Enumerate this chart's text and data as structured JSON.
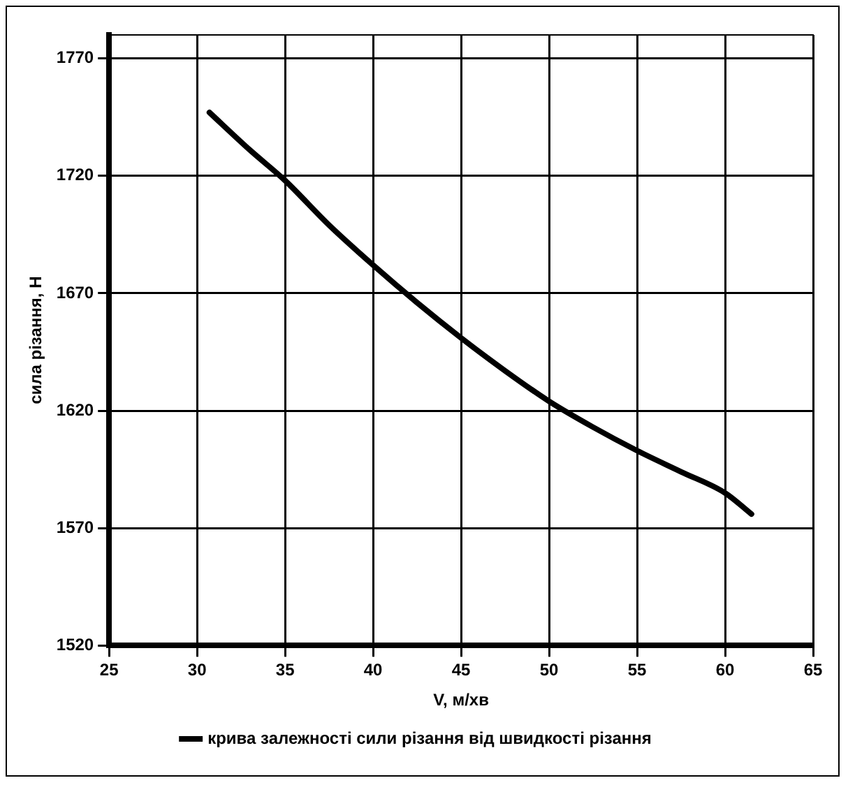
{
  "chart_data": {
    "type": "line",
    "xlabel": "V, м/хв",
    "ylabel": "сила різання, Н",
    "x": [
      30.7,
      33,
      35,
      37.5,
      40,
      42.5,
      45,
      47.5,
      50,
      52.5,
      55,
      57.5,
      60,
      61.5
    ],
    "series": [
      {
        "name": "крива залежності сили різання від швидкості різання",
        "color": "#000000",
        "values": [
          1747,
          1731,
          1718,
          1699,
          1682,
          1666,
          1651,
          1637,
          1624,
          1613,
          1603,
          1594,
          1585,
          1576
        ]
      }
    ],
    "xlim": [
      25,
      65
    ],
    "xticks": [
      25,
      30,
      35,
      40,
      45,
      50,
      55,
      60,
      65
    ],
    "ylim": [
      1520,
      1780
    ],
    "yticks": [
      1520,
      1570,
      1620,
      1670,
      1720,
      1770
    ],
    "grid": true,
    "legend": "bottom",
    "marker": "none",
    "line_style": "solid"
  }
}
